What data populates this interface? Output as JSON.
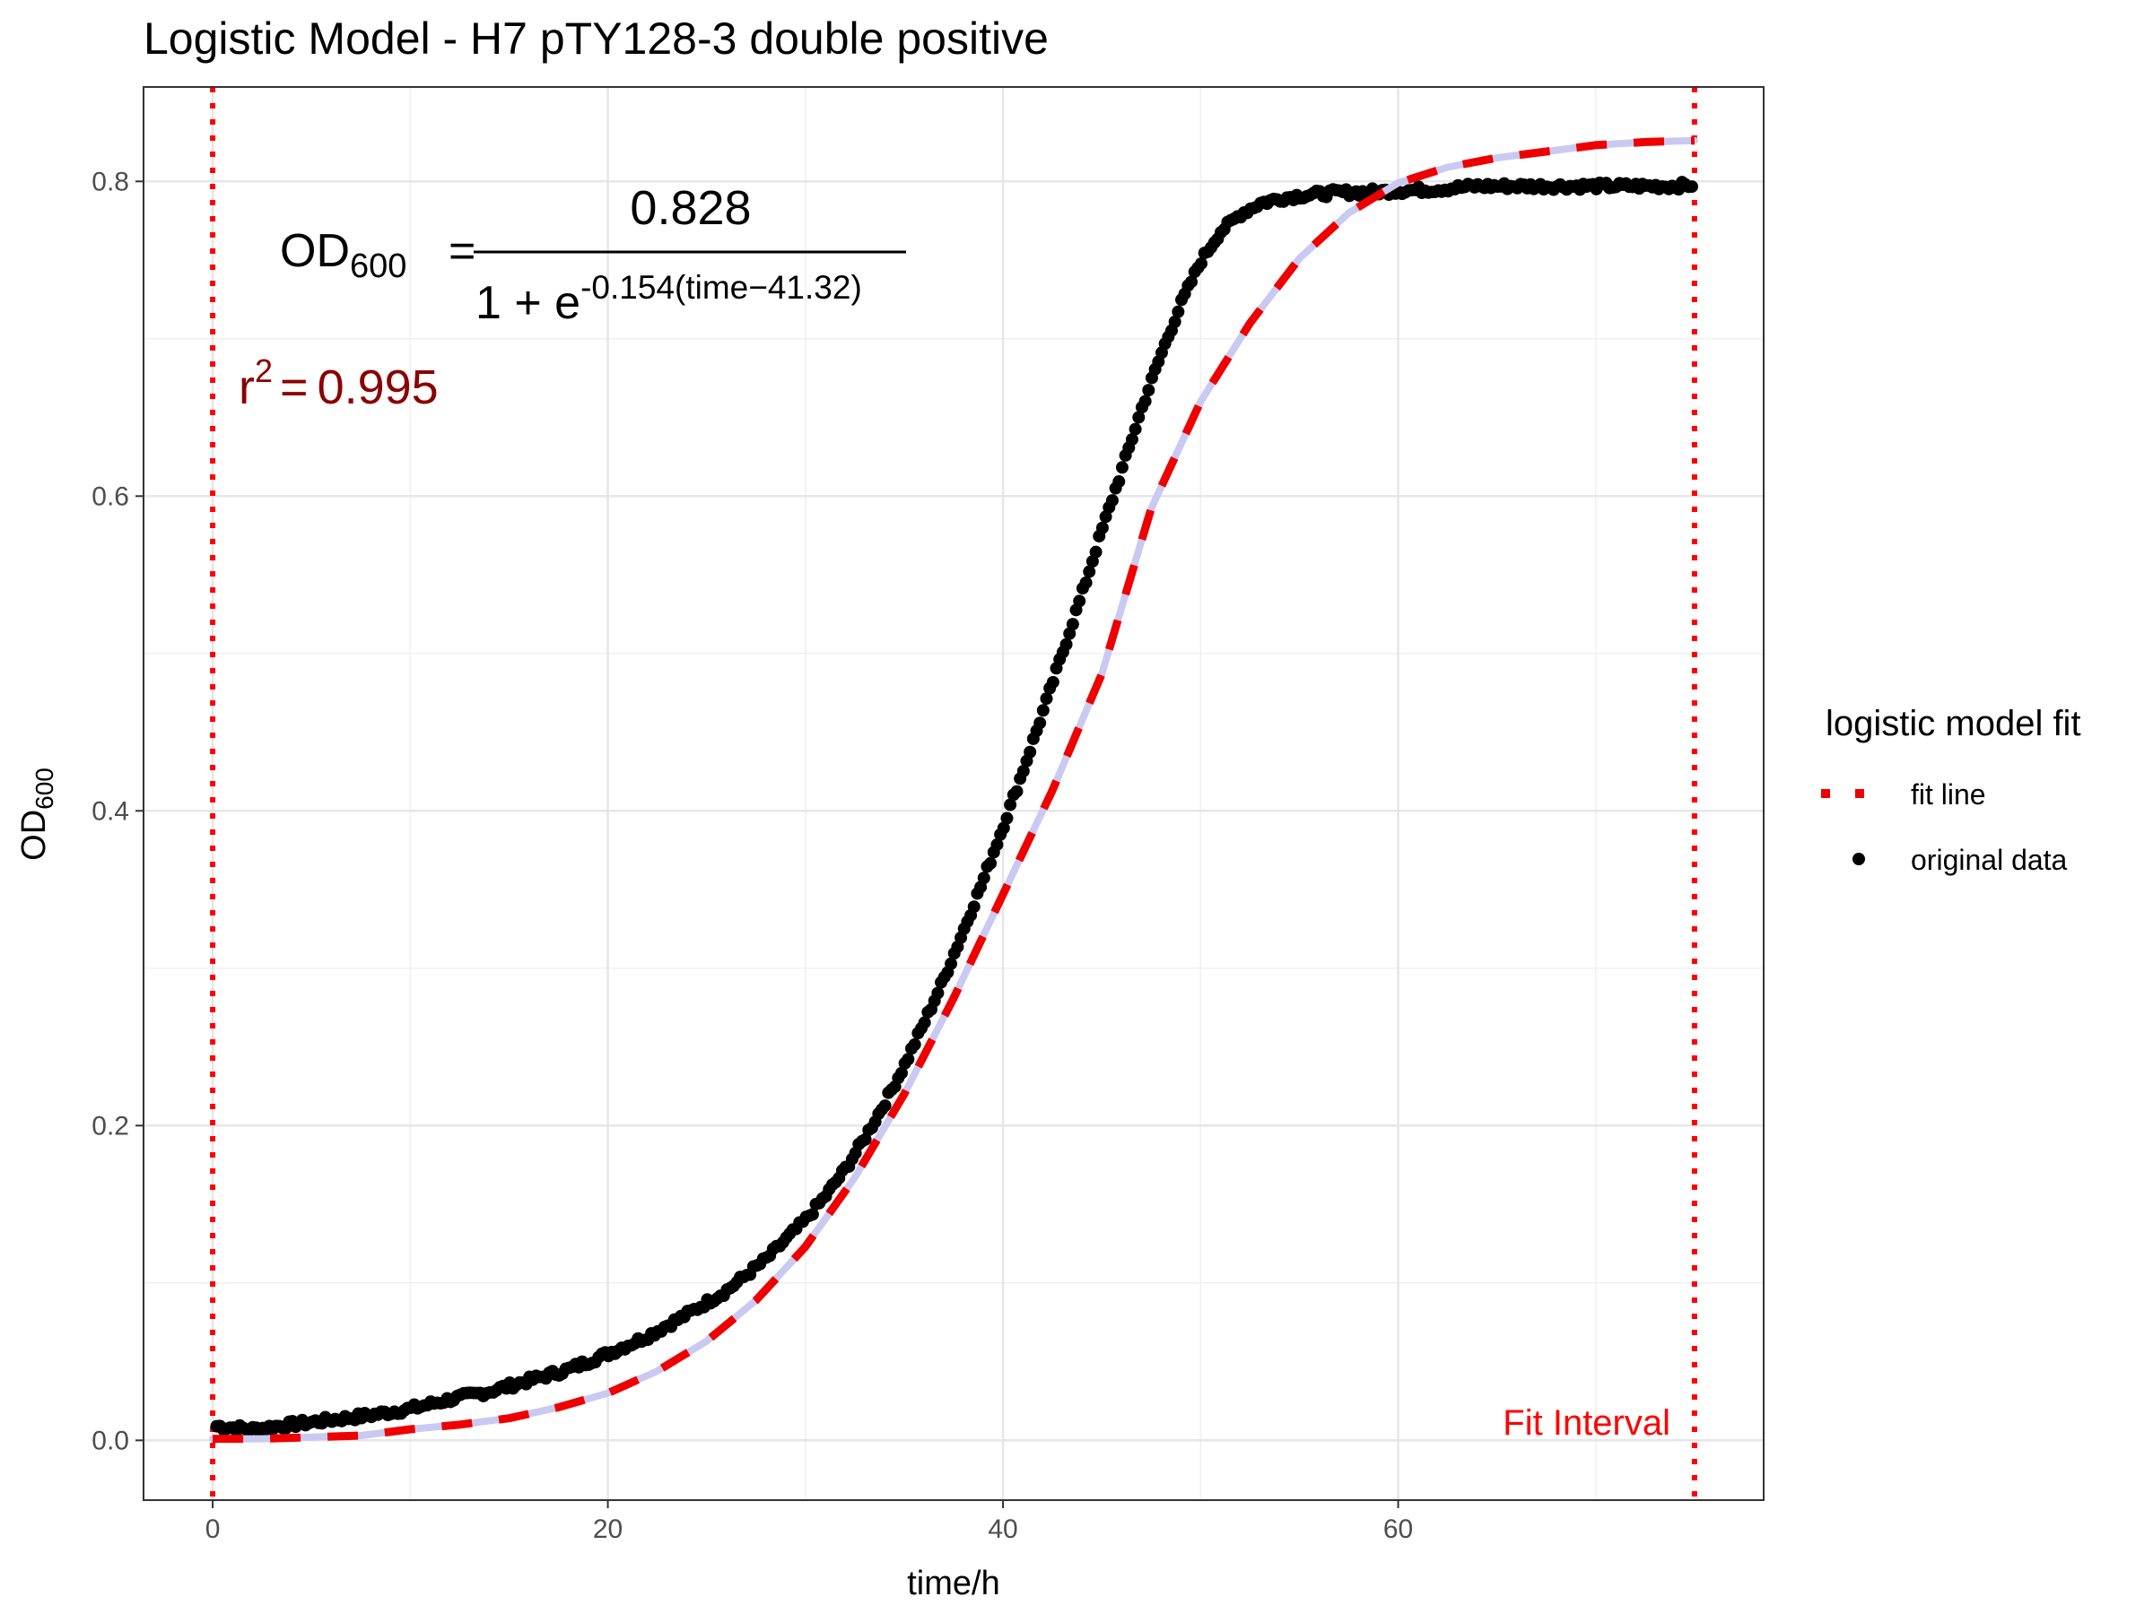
{
  "chart_data": {
    "type": "scatter",
    "title": "Logistic Model -  H7 pTY128-3 double positive",
    "xlabel": "time/h",
    "ylabel_main": "OD",
    "ylabel_sub": "600",
    "xlim": [
      -3.5,
      78.5
    ],
    "ylim": [
      -0.038,
      0.86
    ],
    "x_ticks": [
      0,
      20,
      40,
      60
    ],
    "x_tick_labels": [
      "0",
      "20",
      "40",
      "60"
    ],
    "y_ticks": [
      0.0,
      0.2,
      0.4,
      0.6,
      0.8
    ],
    "y_tick_labels": [
      "0.0",
      "0.2",
      "0.4",
      "0.6",
      "0.8"
    ],
    "grid": true,
    "fit_interval": [
      0,
      75
    ],
    "fit_interval_label": "Fit Interval",
    "model": {
      "K": 0.828,
      "r": 0.154,
      "t0": 41.32
    },
    "equation": {
      "lhs_main": "OD",
      "lhs_sub": "600",
      "equals": "=",
      "numerator": "0.828",
      "denominator_prefix": "1 + e",
      "exponent": "-0.154(time−41.32)"
    },
    "r_squared": {
      "label": "r",
      "power": "2",
      "equals": "=",
      "value": "0.995"
    },
    "legend": {
      "title": "logistic model fit",
      "position": "right",
      "items": [
        {
          "label": "fit line",
          "color": "#ee0000",
          "style": "dashed"
        },
        {
          "label": "original data",
          "color": "#000000",
          "style": "point"
        }
      ]
    },
    "series": [
      {
        "name": "original data",
        "x": [
          0.2,
          2,
          4,
          6,
          8,
          10,
          12,
          14,
          16,
          18,
          20,
          22,
          24,
          26,
          28,
          30,
          31,
          32,
          33,
          34,
          35,
          36,
          37,
          38,
          39,
          40,
          41,
          42,
          43,
          44,
          45,
          46,
          47,
          48,
          49,
          50,
          51,
          52,
          53,
          54,
          55,
          56,
          57,
          58,
          60,
          62,
          64,
          66,
          68,
          70,
          72,
          74,
          75
        ],
        "y": [
          0.009,
          0.007,
          0.01,
          0.013,
          0.016,
          0.02,
          0.026,
          0.031,
          0.038,
          0.045,
          0.055,
          0.066,
          0.08,
          0.095,
          0.115,
          0.14,
          0.155,
          0.172,
          0.192,
          0.214,
          0.238,
          0.265,
          0.293,
          0.324,
          0.356,
          0.39,
          0.425,
          0.462,
          0.5,
          0.538,
          0.578,
          0.616,
          0.655,
          0.69,
          0.722,
          0.749,
          0.768,
          0.779,
          0.786,
          0.789,
          0.791,
          0.792,
          0.793,
          0.793,
          0.794,
          0.795,
          0.797,
          0.797,
          0.797,
          0.797,
          0.797,
          0.797,
          0.798
        ],
        "color": "#000000"
      },
      {
        "name": "fit line",
        "x": [
          0,
          2.5,
          5,
          7.5,
          10,
          12.5,
          15,
          17.5,
          20,
          22.5,
          25,
          27.5,
          30,
          32.5,
          35,
          37.5,
          40,
          42.5,
          45,
          47.5,
          50,
          52.5,
          55,
          57.5,
          60,
          62.5,
          65,
          67.5,
          70,
          72.5,
          75
        ],
        "y": [
          0.001,
          0.001,
          0.002,
          0.003,
          0.007,
          0.01,
          0.014,
          0.021,
          0.03,
          0.044,
          0.063,
          0.089,
          0.123,
          0.167,
          0.22,
          0.281,
          0.347,
          0.413,
          0.487,
          0.592,
          0.66,
          0.71,
          0.751,
          0.78,
          0.799,
          0.809,
          0.815,
          0.819,
          0.823,
          0.825,
          0.826
        ],
        "color": "#ee0000"
      }
    ]
  }
}
